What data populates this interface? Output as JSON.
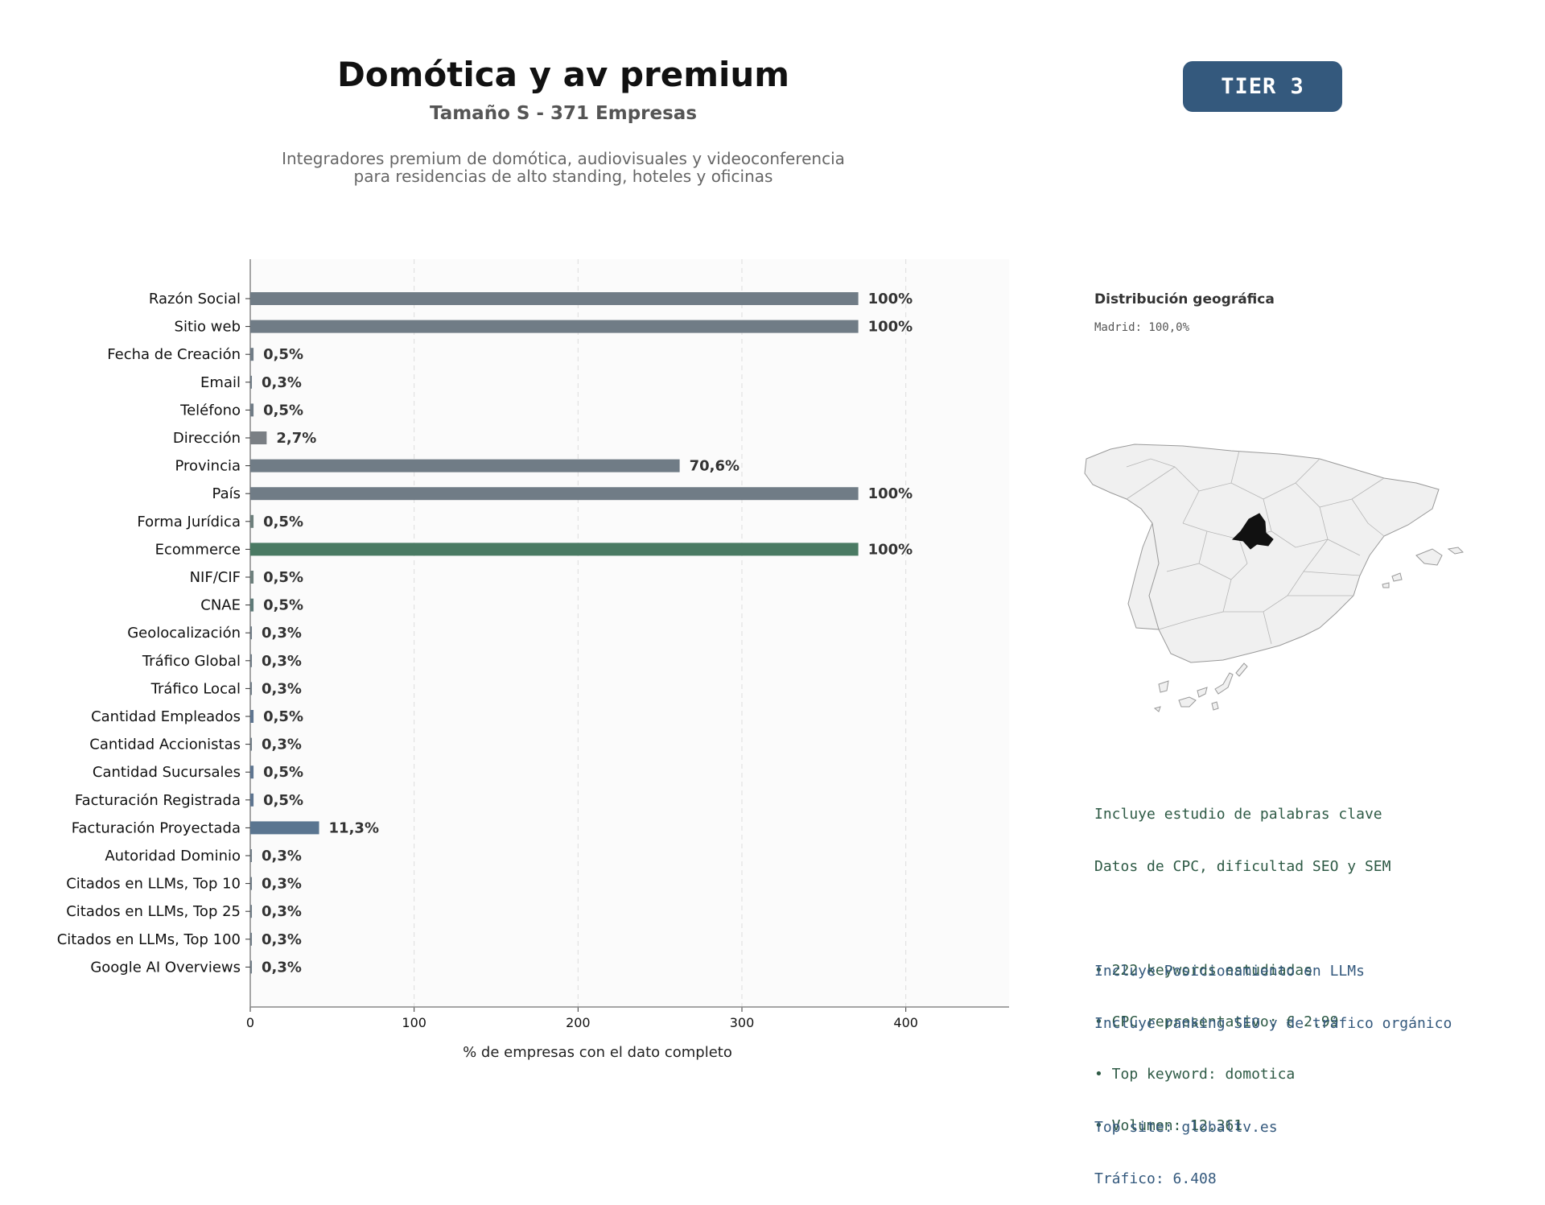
{
  "header": {
    "title": "Domótica y av premium",
    "subtitle": "Tamaño S - 371 Empresas",
    "description_line1": "Integradores premium de domótica, audiovisuales y videoconferencia",
    "description_line2": "para residencias de alto standing, hoteles y oficinas",
    "tier_badge": "TIER 3"
  },
  "chart_data": {
    "type": "bar",
    "orientation": "horizontal",
    "xlabel": "% de empresas con el dato completo",
    "xlim": [
      0,
      463
    ],
    "xticks": [
      0,
      100,
      200,
      300,
      400
    ],
    "grid": "vertical dashed",
    "categories": [
      "Razón Social",
      "Sitio web",
      "Fecha de Creación",
      "Email",
      "Teléfono",
      "Dirección",
      "Provincia",
      "País",
      "Forma Jurídica",
      "Ecommerce",
      "NIF/CIF",
      "CNAE",
      "Geolocalización",
      "Tráfico Global",
      "Tráfico Local",
      "Cantidad Empleados",
      "Cantidad Accionistas",
      "Cantidad Sucursales",
      "Facturación Registrada",
      "Facturación Proyectada",
      "Autoridad Dominio",
      "Citados en LLMs, Top 10",
      "Citados en LLMs, Top 25",
      "Citados en LLMs, Top 100",
      "Google AI Overviews"
    ],
    "values": [
      371,
      371,
      2,
      1,
      2,
      10,
      262,
      371,
      2,
      371,
      2,
      2,
      1,
      1,
      1,
      2,
      1,
      2,
      2,
      42,
      1,
      1,
      1,
      1,
      1
    ],
    "labels": [
      "100%",
      "100%",
      "0,5%",
      "0,3%",
      "0,5%",
      "2,7%",
      "70,6%",
      "100%",
      "0,5%",
      "100%",
      "0,5%",
      "0,5%",
      "0,3%",
      "0,3%",
      "0,3%",
      "0,5%",
      "0,3%",
      "0,5%",
      "0,5%",
      "11,3%",
      "0,3%",
      "0,3%",
      "0,3%",
      "0,3%",
      "0,3%"
    ],
    "colors": [
      "#707c86",
      "#707c86",
      "#707c86",
      "#707c86",
      "#707c86",
      "#7a7f84",
      "#707c86",
      "#707c86",
      "#6d7f7c",
      "#4a7a63",
      "#6d7f7c",
      "#5e7a78",
      "#707c86",
      "#707c86",
      "#707c86",
      "#5e7590",
      "#707c86",
      "#5e7590",
      "#5e7590",
      "#5a7590",
      "#707c86",
      "#707c86",
      "#707c86",
      "#707c86",
      "#707c86"
    ]
  },
  "geo": {
    "title": "Distribución geográfica",
    "line": "Madrid: 100,0%",
    "highlight_region": "Madrid",
    "highlight_color": "#111111",
    "base_color": "#f0f0f0"
  },
  "keywords": {
    "line1": "Incluye estudio de palabras clave",
    "line2": "Datos de CPC, dificultad SEO y SEM",
    "bullet1": "• 222 keywords estudiadas",
    "bullet2": "• CPC representativo: € 2.99",
    "bullet3": "• Top keyword: domotica",
    "bullet4": "• Volumen: 12.361"
  },
  "llm": {
    "line1": "Incluye Posicionamiento en LLMs",
    "line2": "Incluye ranking SEO y de tráfico orgánico",
    "line3": "Top site: globaltv.es",
    "line4": "Tráfico: 6.408"
  }
}
